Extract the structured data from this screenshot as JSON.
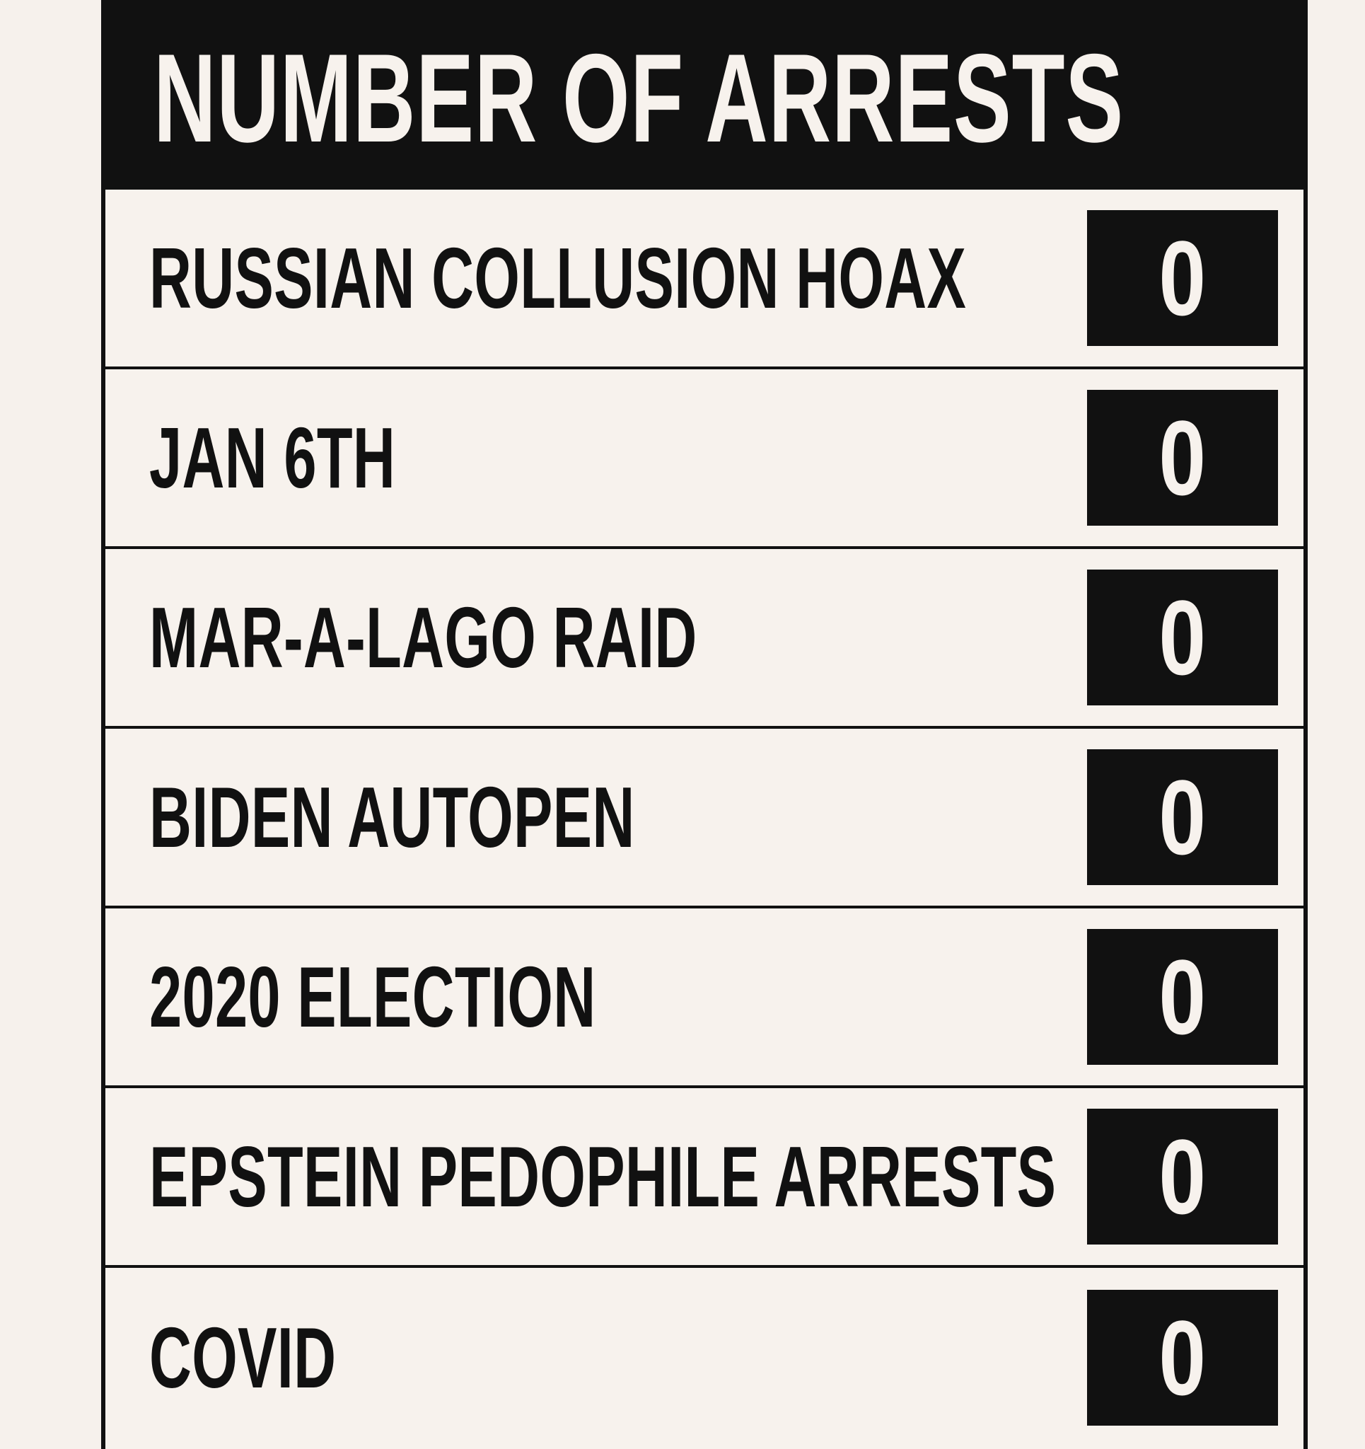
{
  "title": "NUMBER OF ARRESTS",
  "rows": [
    {
      "label": "RUSSIAN COLLUSION HOAX",
      "count": "0"
    },
    {
      "label": "JAN 6TH",
      "count": "0"
    },
    {
      "label": "MAR-A-LAGO RAID",
      "count": "0"
    },
    {
      "label": "BIDEN AUTOPEN",
      "count": "0"
    },
    {
      "label": "2020 ELECTION",
      "count": "0"
    },
    {
      "label": "EPSTEIN PEDOPHILE ARRESTS",
      "count": "0"
    },
    {
      "label": "COVID",
      "count": "0"
    }
  ],
  "colors": {
    "background": "#f6f1ec",
    "ink": "#111111"
  }
}
